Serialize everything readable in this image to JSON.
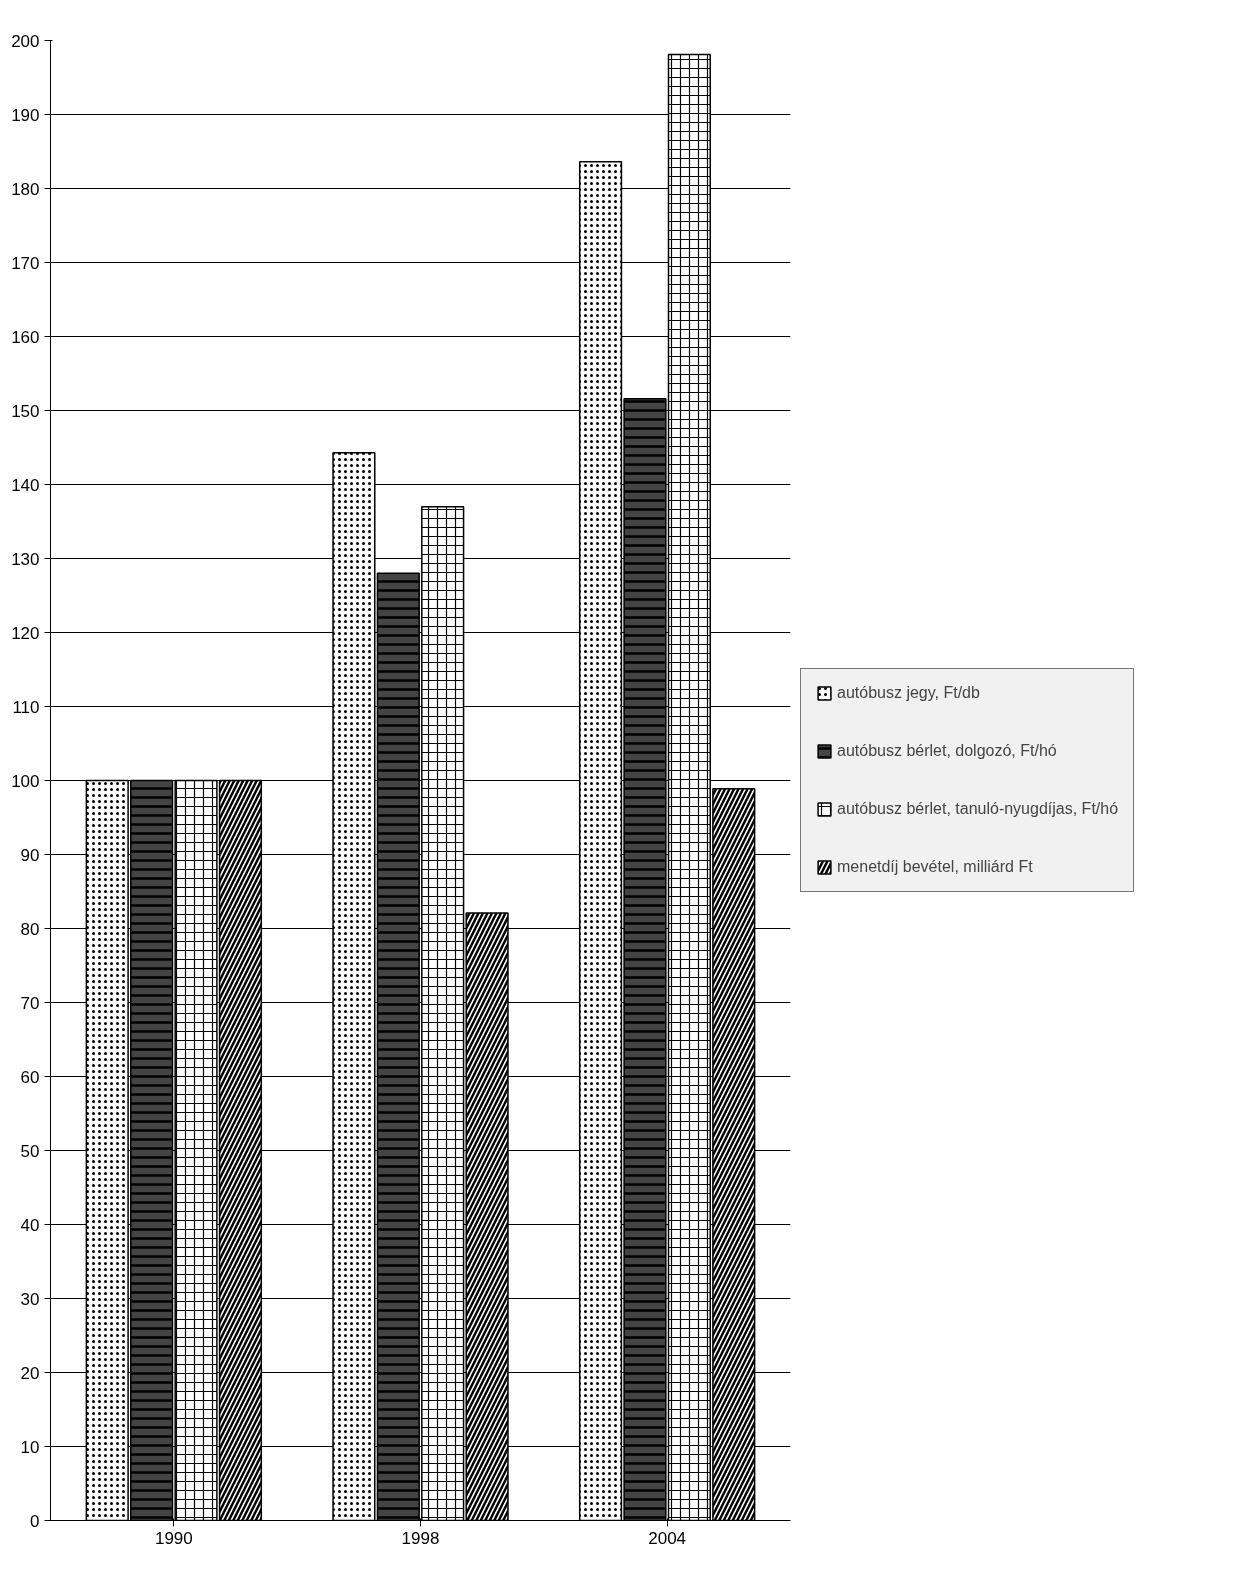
{
  "chart_data": {
    "type": "bar",
    "categories": [
      "1990",
      "1998",
      "2004"
    ],
    "series": [
      {
        "name": "autóbusz jegy, Ft/db",
        "color": "#ffffff",
        "values": [
          100,
          144.3,
          183.6
        ]
      },
      {
        "name": "autóbusz bérlet, dolgozó, Ft/hó",
        "color": "#444444",
        "values": [
          100,
          128,
          151.6
        ]
      },
      {
        "name": "autóbusz bérlet, tanuló-nyugdíjas, Ft/hó",
        "color": "#ffffff",
        "values": [
          100,
          137,
          198.1
        ]
      },
      {
        "name": "menetdíj bevétel, milliárd Ft",
        "color": "#ffffff",
        "values": [
          100,
          82.1,
          98.9
        ]
      }
    ],
    "ylim": [
      0,
      200
    ],
    "yticks": [
      0,
      10,
      20,
      30,
      40,
      50,
      60,
      70,
      80,
      90,
      100,
      110,
      120,
      130,
      140,
      150,
      160,
      170,
      180,
      190,
      200
    ],
    "grid": "y",
    "legend": "right"
  }
}
